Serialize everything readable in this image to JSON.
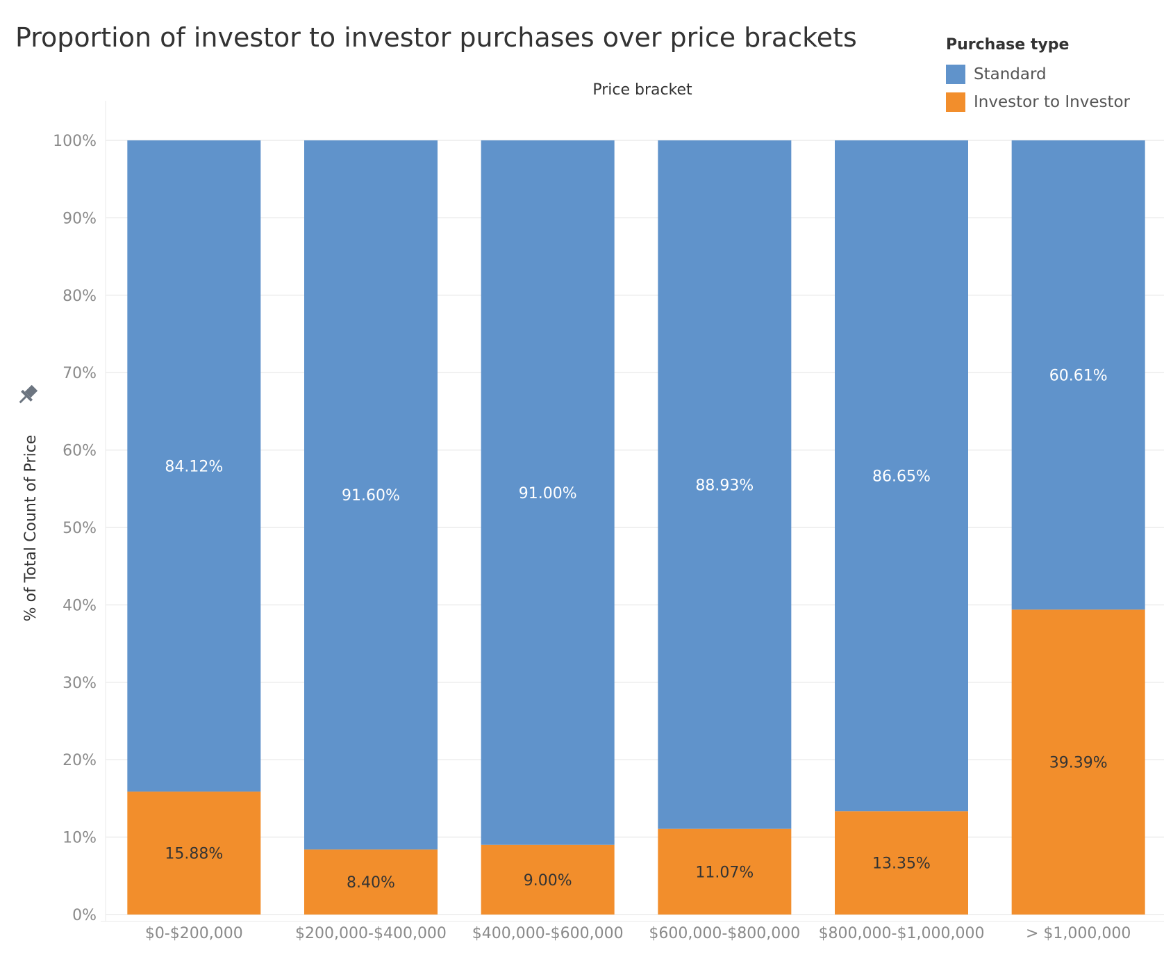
{
  "colors": {
    "standard": "#6093cb",
    "investor": "#f28e2c"
  },
  "chart_data": {
    "type": "bar",
    "stacked": true,
    "title": "Proportion of investor to investor purchases over price brackets",
    "column_header": "Price bracket",
    "ylabel": "% of Total Count of Price",
    "ylim": [
      0,
      100
    ],
    "y_ticks": [
      "0%",
      "10%",
      "20%",
      "30%",
      "40%",
      "50%",
      "60%",
      "70%",
      "80%",
      "90%",
      "100%"
    ],
    "categories": [
      "$0-$200,000",
      "$200,000-$400,000",
      "$400,000-$600,000",
      "$600,000-$800,000",
      "$800,000-$1,000,000",
      "> $1,000,000"
    ],
    "legend": {
      "title": "Purchase type",
      "position": "top-right"
    },
    "series": [
      {
        "name": "Investor to Investor",
        "values": [
          15.88,
          8.4,
          9.0,
          11.07,
          13.35,
          39.39
        ],
        "labels": [
          "15.88%",
          "8.40%",
          "9.00%",
          "11.07%",
          "13.35%",
          "39.39%"
        ]
      },
      {
        "name": "Standard",
        "values": [
          84.12,
          91.6,
          91.0,
          88.93,
          86.65,
          60.61
        ],
        "labels": [
          "84.12%",
          "91.60%",
          "91.00%",
          "88.93%",
          "86.65%",
          "60.61%"
        ]
      }
    ],
    "grid": true
  }
}
